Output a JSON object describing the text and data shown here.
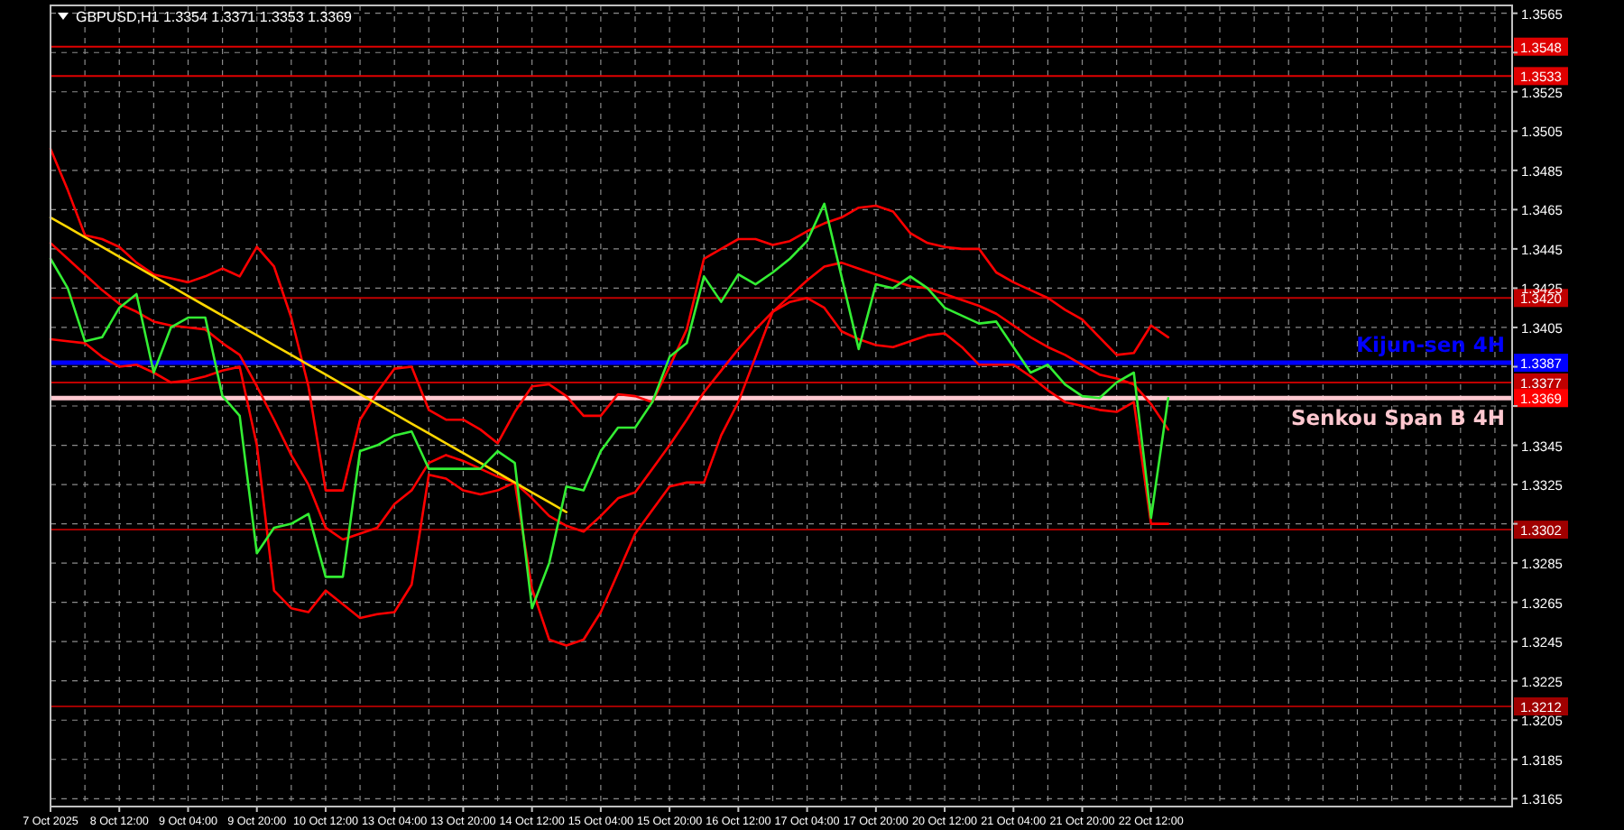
{
  "chart_data": {
    "type": "line",
    "title": "GBPUSD,H1  1.3354 1.3371 1.3353 1.3369",
    "ylim": [
      1.3161,
      1.3569
    ],
    "grid": true,
    "categories": [
      "7 Oct 2025",
      null,
      null,
      null,
      "8 Oct 12:00",
      null,
      null,
      null,
      "9 Oct 04:00",
      null,
      null,
      null,
      "9 Oct 20:00",
      null,
      null,
      null,
      "10 Oct 12:00",
      null,
      null,
      null,
      "13 Oct 04:00",
      null,
      null,
      null,
      "13 Oct 20:00",
      null,
      null,
      null,
      "14 Oct 12:00",
      null,
      null,
      null,
      "15 Oct 04:00",
      null,
      null,
      null,
      "15 Oct 20:00",
      null,
      null,
      null,
      "16 Oct 12:00",
      null,
      null,
      null,
      "17 Oct 04:00",
      null,
      null,
      null,
      "17 Oct 20:00",
      null,
      null,
      null,
      "20 Oct 12:00",
      null,
      null,
      null,
      "21 Oct 04:00",
      null,
      null,
      null,
      "21 Oct 20:00",
      null,
      null,
      null,
      "22 Oct 12:00",
      null,
      null,
      null,
      null,
      null,
      null,
      null,
      null,
      null,
      null,
      null,
      null,
      null,
      null,
      null,
      null,
      null,
      null,
      null,
      null,
      null
    ],
    "yticks": [
      {
        "value": 1.3165,
        "label": "1.3165"
      },
      {
        "value": 1.3185,
        "label": "1.3185"
      },
      {
        "value": 1.3205,
        "label": "1.3205"
      },
      {
        "value": 1.3225,
        "label": "1.3225"
      },
      {
        "value": 1.3245,
        "label": "1.3245"
      },
      {
        "value": 1.3265,
        "label": "1.3265"
      },
      {
        "value": 1.3285,
        "label": "1.3285"
      },
      {
        "value": 1.3305,
        "label": null
      },
      {
        "value": 1.3325,
        "label": "1.3325"
      },
      {
        "value": 1.3345,
        "label": "1.3345"
      },
      {
        "value": 1.3365,
        "label": null
      },
      {
        "value": 1.3385,
        "label": null
      },
      {
        "value": 1.3405,
        "label": "1.3405"
      },
      {
        "value": 1.3425,
        "label": "1.3425"
      },
      {
        "value": 1.3445,
        "label": "1.3445"
      },
      {
        "value": 1.3465,
        "label": "1.3465"
      },
      {
        "value": 1.3485,
        "label": "1.3485"
      },
      {
        "value": 1.3505,
        "label": "1.3505"
      },
      {
        "value": 1.3525,
        "label": "1.3525"
      },
      {
        "value": 1.3545,
        "label": null
      },
      {
        "value": 1.3565,
        "label": "1.3565"
      }
    ],
    "ref_lines": [
      {
        "axis": "y",
        "value": 1.3548,
        "color": "#e00000",
        "label": "1.3548"
      },
      {
        "axis": "y",
        "value": 1.3533,
        "color": "#e00000",
        "label": "1.3533"
      },
      {
        "axis": "y",
        "value": 1.342,
        "color": "#c00000",
        "label": "1.3420"
      },
      {
        "axis": "y",
        "value": 1.3387,
        "color": "#0000ff",
        "label": "1.3387"
      },
      {
        "axis": "y",
        "value": 1.3377,
        "color": "#c00000",
        "label": "1.3377"
      },
      {
        "axis": "y",
        "value": 1.3369,
        "color": "#ffc8d0",
        "label": "1.3369"
      },
      {
        "axis": "y",
        "value": 1.3302,
        "color": "#a00000",
        "label": "1.3302"
      },
      {
        "axis": "y",
        "value": 1.3212,
        "color": "#a00000",
        "label": "1.3212"
      }
    ],
    "annotations": [
      {
        "text": "Kijun-sen 4H",
        "y": 1.3387
      },
      {
        "text": "Senkou Span B 4H",
        "y": 1.3369
      }
    ],
    "series": [
      {
        "color": "#ff0000",
        "values": [
          1.3496,
          1.3475,
          1.3452,
          1.345,
          1.3446,
          1.3438,
          1.3432,
          1.343,
          1.3428,
          1.3431,
          1.3435,
          1.3431,
          1.3446,
          1.3436,
          1.341,
          1.3375,
          1.3322,
          1.3322,
          1.3358,
          1.3372,
          1.3384,
          1.3385,
          1.3363,
          1.3358,
          1.3358,
          1.3353,
          1.3346,
          1.3362,
          1.3375,
          1.3376,
          1.337,
          1.336,
          1.336,
          1.3371,
          1.337,
          1.3367,
          1.3385,
          1.3404,
          1.344,
          1.3445,
          1.345,
          1.345,
          1.3447,
          1.3449,
          1.3454,
          1.3458,
          1.3461,
          1.3466,
          1.3467,
          1.3464,
          1.3453,
          1.3448,
          1.3446,
          1.3445,
          1.3445,
          1.3433,
          1.3428,
          1.3424,
          1.342,
          1.3414,
          1.3409,
          1.34,
          1.3391,
          1.3392,
          1.3406,
          1.34,
          null,
          null,
          null,
          null,
          null,
          null,
          null,
          null,
          null,
          null,
          null,
          null,
          null,
          null,
          null,
          null,
          null,
          null,
          null,
          null
        ]
      },
      {
        "color": "#ff0000",
        "values": [
          1.3448,
          1.344,
          1.3432,
          1.3424,
          1.3417,
          1.3413,
          1.3408,
          1.3406,
          1.3405,
          1.3404,
          1.3397,
          1.3391,
          1.3375,
          1.3358,
          1.334,
          1.3325,
          1.3303,
          1.3297,
          1.33,
          1.3303,
          1.3315,
          1.3322,
          1.3336,
          1.334,
          1.3337,
          1.3333,
          1.3329,
          1.3326,
          1.3318,
          1.3309,
          1.3304,
          1.3301,
          1.3309,
          1.3318,
          1.3321,
          1.3333,
          1.3345,
          1.3358,
          1.3372,
          1.3383,
          1.3394,
          1.3404,
          1.3413,
          1.3421,
          1.3429,
          1.3436,
          1.3438,
          1.3435,
          1.3432,
          1.3429,
          1.3426,
          1.3425,
          1.3422,
          1.3419,
          1.3416,
          1.3412,
          1.3406,
          1.34,
          1.3395,
          1.3391,
          1.3386,
          1.3381,
          1.3379,
          1.3376,
          1.3366,
          1.3353,
          null,
          null,
          null,
          null,
          null,
          null,
          null,
          null,
          null,
          null,
          null,
          null,
          null,
          null,
          null,
          null,
          null,
          null,
          null,
          null
        ]
      },
      {
        "color": "#ff0000",
        "values": [
          1.3399,
          1.3398,
          1.3397,
          1.339,
          1.3385,
          1.3386,
          1.3382,
          1.3377,
          1.3378,
          1.338,
          1.3383,
          1.3385,
          1.3345,
          1.3271,
          1.3262,
          1.326,
          1.3271,
          1.3264,
          1.3257,
          1.3259,
          1.326,
          1.3274,
          1.333,
          1.3328,
          1.3322,
          1.332,
          1.3322,
          1.3326,
          1.3272,
          1.3246,
          1.3243,
          1.3246,
          1.326,
          1.328,
          1.33,
          1.3312,
          1.3324,
          1.3326,
          1.3326,
          1.335,
          1.3367,
          1.339,
          1.3413,
          1.3418,
          1.342,
          1.3415,
          1.3403,
          1.3399,
          1.3396,
          1.3395,
          1.3398,
          1.3401,
          1.3402,
          1.3395,
          1.3386,
          1.3386,
          1.3386,
          1.338,
          1.3373,
          1.3367,
          1.3365,
          1.3363,
          1.3362,
          1.3367,
          1.3305,
          1.3305,
          null,
          null,
          null,
          null,
          null,
          null,
          null,
          null,
          null,
          null,
          null,
          null,
          null,
          null,
          null,
          null,
          null,
          null,
          null,
          null
        ]
      },
      {
        "color": "#ffd700",
        "values": [
          1.3461,
          1.3456,
          1.3451,
          1.3446,
          1.3441,
          1.3436,
          1.3431,
          1.3426,
          1.3421,
          1.3416,
          1.3411,
          1.3406,
          1.3401,
          1.3396,
          1.3391,
          1.3386,
          1.3381,
          1.3376,
          1.3371,
          1.3366,
          1.3361,
          1.3356,
          1.3351,
          1.3346,
          1.3341,
          1.3336,
          1.3331,
          1.3326,
          1.3321,
          1.3316,
          1.3311,
          null,
          null,
          null,
          null,
          null,
          null,
          null,
          null,
          null,
          null,
          null,
          null,
          null,
          null,
          null,
          null,
          null,
          null,
          null,
          null,
          null,
          null,
          null,
          null,
          null,
          null,
          null,
          null,
          null,
          null,
          null,
          null,
          null,
          null,
          null,
          null,
          null,
          null,
          null,
          null,
          null,
          null,
          null,
          null,
          null,
          null,
          null,
          null,
          null,
          null,
          null,
          null,
          null,
          null,
          null
        ]
      },
      {
        "color": "#33ee33",
        "values": [
          1.344,
          1.3425,
          1.3398,
          1.34,
          1.3415,
          1.3422,
          1.3382,
          1.3405,
          1.341,
          1.341,
          1.337,
          1.336,
          1.329,
          1.3303,
          1.3305,
          1.331,
          1.3278,
          1.3278,
          1.3342,
          1.3345,
          1.335,
          1.3352,
          1.3333,
          1.3333,
          1.3333,
          1.3333,
          1.3342,
          1.3336,
          1.3262,
          1.3285,
          1.3324,
          1.3322,
          1.3342,
          1.3354,
          1.3354,
          1.3367,
          1.339,
          1.3397,
          1.3431,
          1.3418,
          1.3432,
          1.3427,
          1.3433,
          1.344,
          1.3449,
          1.3468,
          1.3431,
          1.3394,
          1.3427,
          1.3425,
          1.3431,
          1.3425,
          1.3415,
          1.3411,
          1.3407,
          1.3408,
          1.3395,
          1.3382,
          1.3386,
          1.3376,
          1.337,
          1.3369,
          1.3377,
          1.3382,
          1.3308,
          1.3369,
          null,
          null,
          null,
          null,
          null,
          null,
          null,
          null,
          null,
          null,
          null,
          null,
          null,
          null,
          null,
          null,
          null,
          null,
          null,
          null
        ]
      }
    ]
  }
}
